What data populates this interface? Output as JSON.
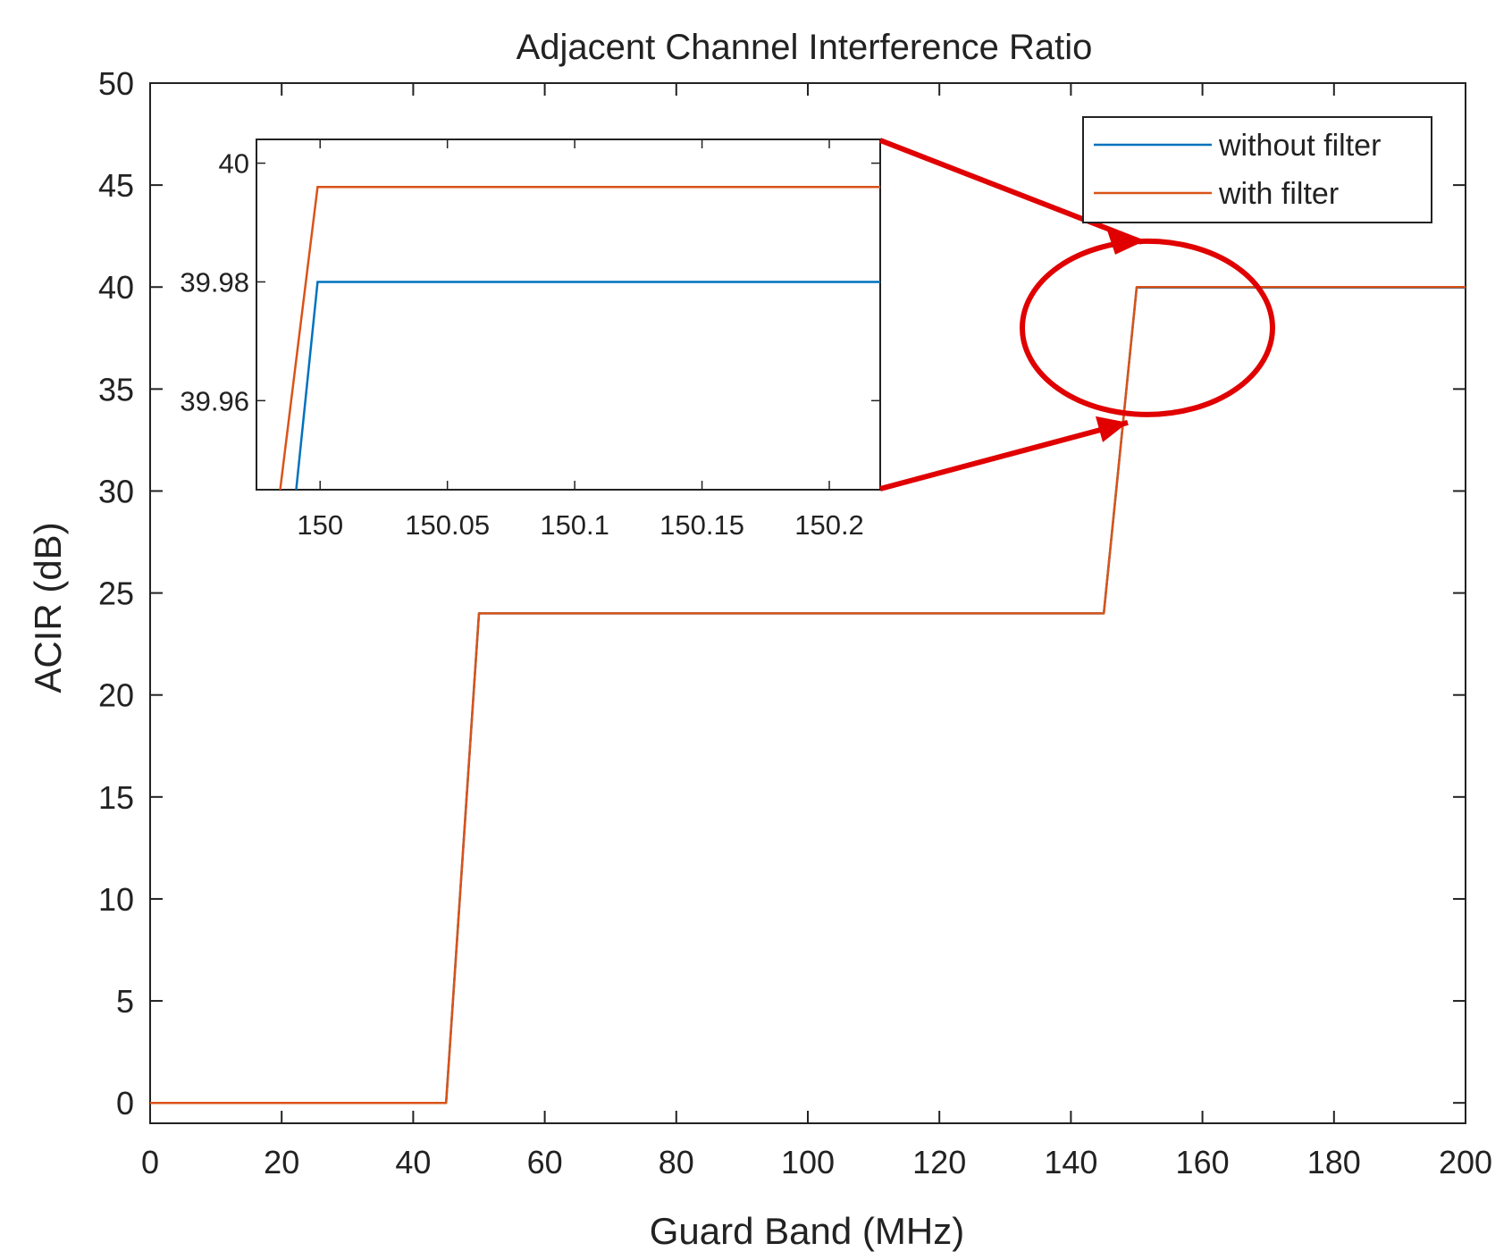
{
  "colors": {
    "without_filter": "#0072BD",
    "with_filter": "#D95319",
    "annotation": "#E00000",
    "axes": "#222222"
  },
  "chart_data": [
    {
      "id": "main",
      "type": "line",
      "title": "Adjacent Channel Interference Ratio",
      "xlabel": "Guard Band (MHz)",
      "ylabel": "ACIR (dB)",
      "xlim": [
        0,
        200
      ],
      "ylim": [
        -1,
        50
      ],
      "xticks": [
        0,
        20,
        40,
        60,
        80,
        100,
        120,
        140,
        160,
        180,
        200
      ],
      "yticks": [
        0,
        5,
        10,
        15,
        20,
        25,
        30,
        35,
        40,
        45,
        50
      ],
      "grid": false,
      "legend_position": "top-right",
      "series": [
        {
          "name": "without filter",
          "color": "#0072BD",
          "x": [
            0,
            45,
            50,
            145,
            150,
            200
          ],
          "y": [
            0,
            0,
            24,
            24,
            39.98,
            39.98
          ]
        },
        {
          "name": "with filter",
          "color": "#D95319",
          "x": [
            0,
            45,
            50,
            145,
            150,
            200
          ],
          "y": [
            0,
            0,
            24,
            24,
            39.996,
            39.996
          ]
        }
      ]
    },
    {
      "id": "inset",
      "type": "line",
      "xlim": [
        149.975,
        150.22
      ],
      "ylim": [
        39.945,
        40.004
      ],
      "xticks": [
        150,
        150.05,
        150.1,
        150.15,
        150.2
      ],
      "xtick_labels": [
        "150",
        "150.05",
        "150.1",
        "150.15",
        "150.2"
      ],
      "yticks": [
        39.96,
        39.98,
        40
      ],
      "ytick_labels": [
        "39.96",
        "39.98",
        "40"
      ],
      "series": [
        {
          "name": "without filter",
          "color": "#0072BD",
          "x": [
            149.987,
            149.999,
            150.22
          ],
          "y": [
            39.93,
            39.98,
            39.98
          ]
        },
        {
          "name": "with filter",
          "color": "#D95319",
          "x": [
            149.98,
            149.999,
            150.22
          ],
          "y": [
            39.93,
            39.996,
            39.996
          ]
        }
      ]
    }
  ]
}
